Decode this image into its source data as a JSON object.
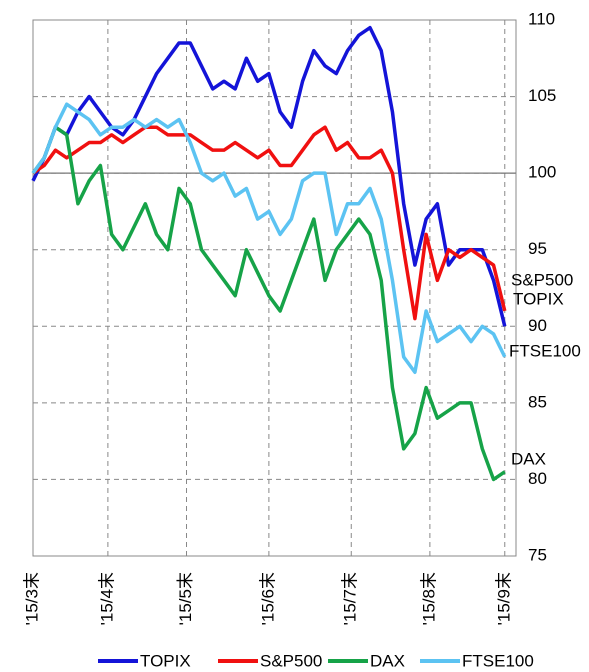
{
  "chart_data": {
    "type": "line",
    "x": [
      0,
      3,
      6,
      9,
      12,
      15,
      18,
      21,
      24,
      27,
      30,
      33,
      36,
      39,
      42,
      45,
      48,
      51,
      54,
      57,
      60,
      63,
      66,
      69,
      72,
      75,
      78,
      81,
      84,
      87,
      90,
      93,
      96,
      99,
      102,
      105,
      108,
      111,
      114,
      117,
      120,
      123,
      126
    ],
    "xlim": [
      0,
      129
    ],
    "xticks": [
      {
        "value": 0,
        "label": "'15/3末"
      },
      {
        "value": 20,
        "label": "'15/4末"
      },
      {
        "value": 41,
        "label": "'15/5末"
      },
      {
        "value": 63,
        "label": "'15/6末"
      },
      {
        "value": 85,
        "label": "'15/7末"
      },
      {
        "value": 106,
        "label": "'15/8末"
      },
      {
        "value": 126,
        "label": "'15/9末"
      }
    ],
    "ylim": [
      75,
      110
    ],
    "yticks": [
      75,
      80,
      85,
      90,
      95,
      100,
      105,
      110
    ],
    "reference_line": 100,
    "grid": true,
    "legend": "bottom",
    "series": [
      {
        "name": "TOPIX",
        "color": "#1414d8",
        "values": [
          99.5,
          101,
          103,
          102.5,
          104,
          105,
          104,
          103,
          102.5,
          103.5,
          105,
          106.5,
          107.5,
          108.5,
          108.5,
          107,
          105.5,
          106,
          105.5,
          107.5,
          106,
          106.5,
          104,
          103,
          106,
          108,
          107,
          106.5,
          108,
          109,
          109.5,
          108,
          104,
          98,
          94,
          97,
          98,
          94,
          95,
          95,
          95,
          93,
          90
        ]
      },
      {
        "name": "S&P500",
        "color": "#f01010",
        "values": [
          100,
          100.5,
          101.5,
          101,
          101.5,
          102,
          102,
          102.5,
          102,
          102.5,
          103,
          103,
          102.5,
          102.5,
          102.5,
          102,
          101.5,
          101.5,
          102,
          101.5,
          101,
          101.5,
          100.5,
          100.5,
          101.5,
          102.5,
          103,
          101.5,
          102,
          101,
          101,
          101.5,
          100,
          95,
          90.5,
          96,
          93,
          95,
          94.5,
          95,
          94.5,
          94,
          91
        ]
      },
      {
        "name": "DAX",
        "color": "#16a348",
        "values": [
          100,
          101,
          103,
          102.5,
          98,
          99.5,
          100.5,
          96,
          95,
          96.5,
          98,
          96,
          95,
          99,
          98,
          95,
          94,
          93,
          92,
          95,
          93.5,
          92,
          91,
          93,
          95,
          97,
          93,
          95,
          96,
          97,
          96,
          93,
          86,
          82,
          83,
          86,
          84,
          84.5,
          85,
          85,
          82,
          80,
          80.5
        ]
      },
      {
        "name": "FTSE100",
        "color": "#5cc3f2",
        "values": [
          100,
          101,
          103,
          104.5,
          104,
          103.5,
          102.5,
          103,
          103,
          103.5,
          103,
          103.5,
          103,
          103.5,
          102,
          100,
          99.5,
          100,
          98.5,
          99,
          97,
          97.5,
          96,
          97,
          99.5,
          100,
          100,
          96,
          98,
          98,
          99,
          97,
          93,
          88,
          87,
          91,
          89,
          89.5,
          90,
          89,
          90,
          89.5,
          88
        ]
      }
    ]
  }
}
